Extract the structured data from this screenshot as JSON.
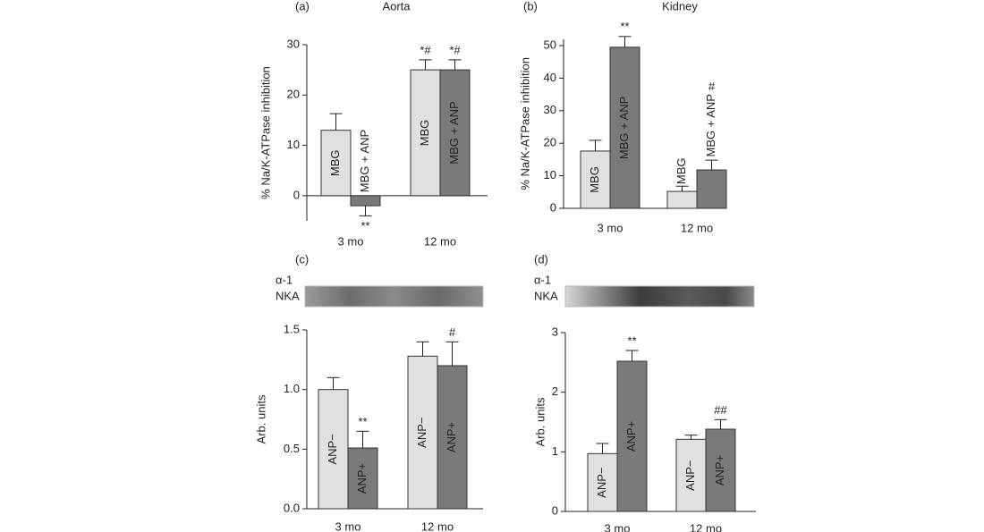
{
  "chart_data": [
    {
      "type": "bar",
      "panel": "(a)",
      "title": "Aorta",
      "ylabel": "% Na/K-ATPase inhibition",
      "categories": [
        "3 mo",
        "12 mo"
      ],
      "ylim": [
        -5,
        30
      ],
      "yticks": [
        0,
        10,
        20,
        30
      ],
      "series": [
        {
          "name": "MBG",
          "color": "#e0e0e0",
          "values": [
            13,
            25
          ],
          "errors": [
            3.3,
            2
          ],
          "significance": [
            null,
            "*#"
          ]
        },
        {
          "name": "MBG + ANP",
          "color": "#7a7a7a",
          "values": [
            -2,
            25
          ],
          "errors": [
            2,
            2
          ],
          "significance": [
            "**",
            "*#"
          ]
        }
      ]
    },
    {
      "type": "bar",
      "panel": "(b)",
      "title": "Kidney",
      "ylabel": "% Na/K-ATPase inhibition",
      "categories": [
        "3 mo",
        "12 mo"
      ],
      "ylim": [
        0,
        52
      ],
      "yticks": [
        0,
        10,
        20,
        30,
        40,
        50
      ],
      "series": [
        {
          "name": "MBG",
          "color": "#e0e0e0",
          "values": [
            17.6,
            5.2
          ],
          "errors": [
            3.3,
            1.6
          ],
          "significance": [
            null,
            null
          ]
        },
        {
          "name": "MBG + ANP",
          "color": "#7a7a7a",
          "values": [
            49.5,
            11.8
          ],
          "errors": [
            3.3,
            3
          ],
          "significance": [
            "**",
            "#"
          ]
        }
      ]
    },
    {
      "type": "bar",
      "panel": "(c)",
      "blot_label_lines": [
        "α-1",
        "NKA"
      ],
      "ylabel": "Arb. units",
      "categories": [
        "3 mo",
        "12 mo"
      ],
      "ylim": [
        0,
        1.5
      ],
      "yticks": [
        {
          "value": 0,
          "label": "0.0"
        },
        0.5,
        {
          "value": 1,
          "label": "1.0"
        },
        1.5
      ],
      "series": [
        {
          "name": "ANP−",
          "color": "#e0e0e0",
          "values": [
            1.0,
            1.28
          ],
          "errors": [
            0.1,
            0.12
          ],
          "significance": [
            null,
            null
          ]
        },
        {
          "name": "ANP+",
          "color": "#7a7a7a",
          "values": [
            0.51,
            1.2
          ],
          "errors": [
            0.14,
            0.2
          ],
          "significance": [
            "**",
            "#"
          ]
        }
      ]
    },
    {
      "type": "bar",
      "panel": "(d)",
      "blot_label_lines": [
        "α-1",
        "NKA"
      ],
      "ylabel": "Arb. units",
      "categories": [
        "3 mo",
        "12 mo"
      ],
      "ylim": [
        0,
        3
      ],
      "yticks": [
        0,
        1,
        2,
        3
      ],
      "series": [
        {
          "name": "ANP−",
          "color": "#e0e0e0",
          "values": [
            0.97,
            1.21
          ],
          "errors": [
            0.17,
            0.07
          ],
          "significance": [
            null,
            null
          ]
        },
        {
          "name": "ANP+",
          "color": "#7a7a7a",
          "values": [
            2.52,
            1.38
          ],
          "errors": [
            0.18,
            0.16
          ],
          "significance": [
            "**",
            "##"
          ]
        }
      ]
    }
  ]
}
